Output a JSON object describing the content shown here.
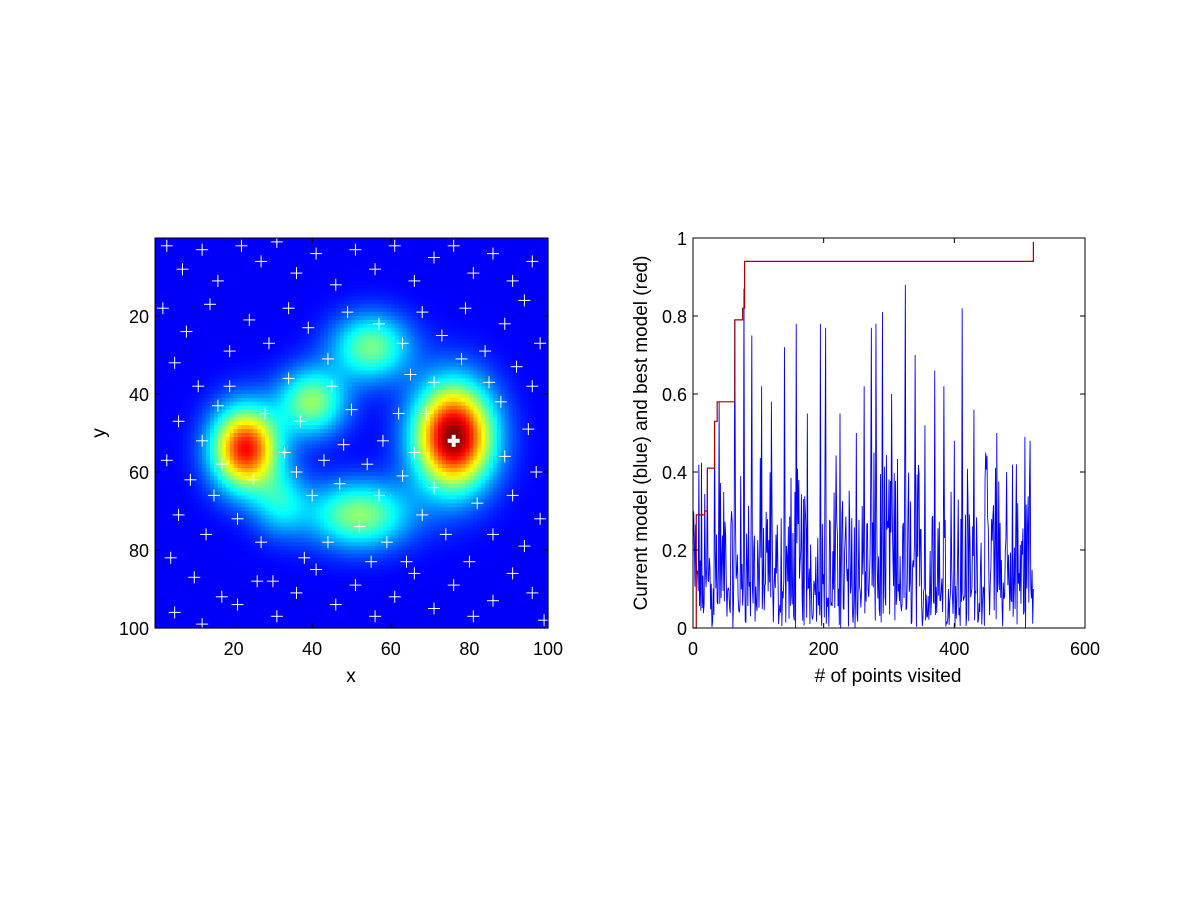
{
  "chart_data": [
    {
      "type": "heatmap",
      "colormap": "jet",
      "xlabel": "x",
      "ylabel": "y",
      "xlim": [
        0,
        100
      ],
      "ylim": [
        0,
        100
      ],
      "y_reversed": true,
      "grid": false,
      "x_ticks": [
        20,
        40,
        60,
        80,
        100
      ],
      "y_ticks": [
        20,
        40,
        60,
        80,
        100
      ],
      "peaks": [
        {
          "x": 76,
          "y": 51,
          "amp": 1.0,
          "sx": 7,
          "sy": 9.5
        },
        {
          "x": 23,
          "y": 54,
          "amp": 0.85,
          "sx": 6,
          "sy": 7.5
        },
        {
          "x": 40,
          "y": 42,
          "amp": 0.45,
          "sx": 6,
          "sy": 6
        },
        {
          "x": 55,
          "y": 28,
          "amp": 0.42,
          "sx": 7,
          "sy": 6
        },
        {
          "x": 52,
          "y": 71,
          "amp": 0.45,
          "sx": 9,
          "sy": 6
        },
        {
          "x": 32,
          "y": 68,
          "amp": 0.25,
          "sx": 5,
          "sy": 6
        }
      ],
      "visited_points": [
        [
          3,
          2
        ],
        [
          7,
          8
        ],
        [
          12,
          3
        ],
        [
          16,
          11
        ],
        [
          22,
          2
        ],
        [
          27,
          6
        ],
        [
          31,
          1
        ],
        [
          36,
          9
        ],
        [
          41,
          4
        ],
        [
          46,
          12
        ],
        [
          51,
          3
        ],
        [
          56,
          8
        ],
        [
          61,
          2
        ],
        [
          66,
          11
        ],
        [
          71,
          5
        ],
        [
          76,
          2
        ],
        [
          81,
          9
        ],
        [
          86,
          4
        ],
        [
          91,
          11
        ],
        [
          96,
          6
        ],
        [
          2,
          18
        ],
        [
          8,
          24
        ],
        [
          14,
          17
        ],
        [
          19,
          29
        ],
        [
          24,
          21
        ],
        [
          29,
          27
        ],
        [
          34,
          18
        ],
        [
          39,
          23
        ],
        [
          44,
          31
        ],
        [
          49,
          19
        ],
        [
          57,
          22
        ],
        [
          63,
          27
        ],
        [
          68,
          19
        ],
        [
          73,
          25
        ],
        [
          79,
          18
        ],
        [
          84,
          29
        ],
        [
          89,
          22
        ],
        [
          94,
          16
        ],
        [
          98,
          27
        ],
        [
          5,
          32
        ],
        [
          11,
          38
        ],
        [
          16,
          43
        ],
        [
          6,
          47
        ],
        [
          12,
          52
        ],
        [
          3,
          57
        ],
        [
          9,
          62
        ],
        [
          15,
          66
        ],
        [
          6,
          71
        ],
        [
          13,
          76
        ],
        [
          4,
          82
        ],
        [
          10,
          87
        ],
        [
          17,
          92
        ],
        [
          5,
          96
        ],
        [
          12,
          99
        ],
        [
          21,
          94
        ],
        [
          26,
          88
        ],
        [
          31,
          97
        ],
        [
          36,
          91
        ],
        [
          41,
          85
        ],
        [
          46,
          94
        ],
        [
          51,
          89
        ],
        [
          56,
          97
        ],
        [
          61,
          92
        ],
        [
          66,
          86
        ],
        [
          71,
          95
        ],
        [
          76,
          89
        ],
        [
          81,
          97
        ],
        [
          86,
          93
        ],
        [
          91,
          86
        ],
        [
          96,
          91
        ],
        [
          99,
          98
        ],
        [
          94,
          79
        ],
        [
          98,
          72
        ],
        [
          91,
          66
        ],
        [
          97,
          60
        ],
        [
          89,
          56
        ],
        [
          95,
          49
        ],
        [
          88,
          42
        ],
        [
          96,
          38
        ],
        [
          92,
          33
        ],
        [
          34,
          36
        ],
        [
          37,
          47
        ],
        [
          33,
          55
        ],
        [
          43,
          57
        ],
        [
          47,
          63
        ],
        [
          58,
          52
        ],
        [
          62,
          45
        ],
        [
          65,
          35
        ],
        [
          63,
          61
        ],
        [
          68,
          71
        ],
        [
          59,
          78
        ],
        [
          64,
          83
        ],
        [
          44,
          78
        ],
        [
          38,
          82
        ],
        [
          27,
          78
        ],
        [
          21,
          72
        ],
        [
          25,
          62
        ],
        [
          17,
          58
        ],
        [
          28,
          45
        ],
        [
          19,
          38
        ],
        [
          45,
          38
        ],
        [
          50,
          44
        ],
        [
          54,
          58
        ],
        [
          57,
          66
        ],
        [
          52,
          74
        ],
        [
          40,
          66
        ],
        [
          36,
          60
        ],
        [
          66,
          55
        ],
        [
          71,
          64
        ],
        [
          82,
          68
        ],
        [
          86,
          76
        ],
        [
          80,
          83
        ],
        [
          74,
          76
        ],
        [
          69,
          45
        ],
        [
          85,
          37
        ],
        [
          78,
          31
        ],
        [
          71,
          37
        ],
        [
          30,
          88
        ],
        [
          55,
          83
        ],
        [
          48,
          53
        ]
      ],
      "best_point": [
        76,
        52
      ]
    },
    {
      "type": "line",
      "xlabel": "# of points visited",
      "ylabel": "Current model (blue) and best model (red)",
      "xlim": [
        0,
        600
      ],
      "ylim": [
        0,
        1
      ],
      "x_ticks": [
        0,
        200,
        400,
        600
      ],
      "y_ticks": [
        0,
        0.2,
        0.4,
        0.6,
        0.8,
        1
      ],
      "y_tick_labels": [
        "0",
        "0.2",
        "0.4",
        "0.6",
        "0.8",
        "1"
      ],
      "grid": false,
      "n_points": 522,
      "current_peaks": [
        [
          22,
          0.41
        ],
        [
          33,
          0.53
        ],
        [
          40,
          0.58
        ],
        [
          64,
          0.79
        ],
        [
          78,
          0.87
        ],
        [
          90,
          0.75
        ],
        [
          105,
          0.62
        ],
        [
          120,
          0.58
        ],
        [
          140,
          0.72
        ],
        [
          158,
          0.78
        ],
        [
          175,
          0.55
        ],
        [
          195,
          0.78
        ],
        [
          203,
          0.77
        ],
        [
          225,
          0.55
        ],
        [
          250,
          0.5
        ],
        [
          262,
          0.62
        ],
        [
          273,
          0.77
        ],
        [
          280,
          0.78
        ],
        [
          290,
          0.81
        ],
        [
          304,
          0.6
        ],
        [
          325,
          0.88
        ],
        [
          340,
          0.7
        ],
        [
          355,
          0.52
        ],
        [
          370,
          0.66
        ],
        [
          384,
          0.62
        ],
        [
          400,
          0.48
        ],
        [
          412,
          0.82
        ],
        [
          430,
          0.56
        ],
        [
          448,
          0.45
        ],
        [
          465,
          0.5
        ],
        [
          480,
          0.4
        ],
        [
          495,
          0.42
        ],
        [
          508,
          0.49
        ],
        [
          516,
          0.48
        ]
      ],
      "series": [
        {
          "color": "#0000ff",
          "role": "current model"
        },
        {
          "color": "#aa0000",
          "role": "best model",
          "steps": [
            [
              0,
              0.0
            ],
            [
              5,
              0.29
            ],
            [
              18,
              0.3
            ],
            [
              22,
              0.41
            ],
            [
              33,
              0.53
            ],
            [
              37,
              0.58
            ],
            [
              64,
              0.79
            ],
            [
              76,
              0.82
            ],
            [
              79,
              0.94
            ],
            [
              520,
              0.94
            ],
            [
              521,
              0.99
            ]
          ]
        }
      ]
    }
  ]
}
